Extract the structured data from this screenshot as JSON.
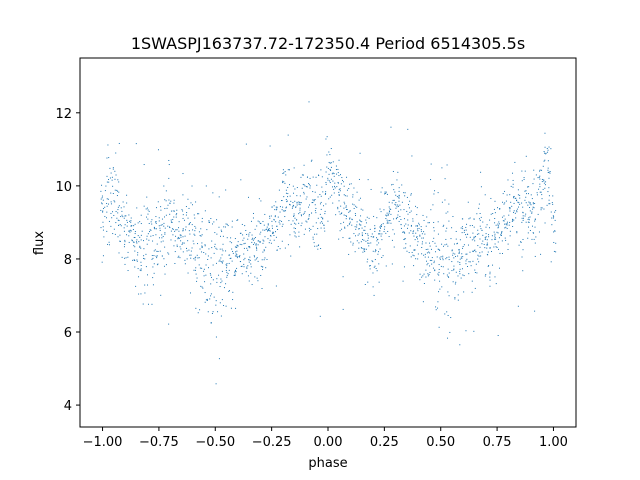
{
  "chart_data": {
    "type": "scatter",
    "title": "1SWASPJ163737.72-172350.4 Period 6514305.5s",
    "xlabel": "phase",
    "ylabel": "flux",
    "xlim": [
      -1.1,
      1.1
    ],
    "ylim": [
      3.4,
      13.5
    ],
    "xticks": [
      -1.0,
      -0.75,
      -0.5,
      -0.25,
      0.0,
      0.25,
      0.5,
      0.75,
      1.0
    ],
    "xtick_labels": [
      "−1.00",
      "−0.75",
      "−0.50",
      "−0.25",
      "0.00",
      "0.25",
      "0.50",
      "0.75",
      "1.00"
    ],
    "yticks": [
      4,
      6,
      8,
      10,
      12
    ],
    "ytick_labels": [
      "4",
      "6",
      "8",
      "10",
      "12"
    ],
    "grid": false,
    "legend": "none",
    "point_color": "#1f77b4",
    "series": [
      {
        "x": [
          -1.0,
          -0.98,
          -0.96,
          -0.94,
          -0.92,
          -0.9,
          -0.88,
          -0.86,
          -0.84,
          -0.82,
          -0.8,
          -0.78,
          -0.76,
          -0.74,
          -0.72,
          -0.7,
          -0.68,
          -0.66,
          -0.64,
          -0.62,
          -0.6,
          -0.58,
          -0.56,
          -0.54,
          -0.52,
          -0.5,
          -0.48,
          -0.46,
          -0.44,
          -0.42,
          -0.4,
          -0.38,
          -0.36,
          -0.34,
          -0.32,
          -0.3,
          -0.28,
          -0.26,
          -0.24,
          -0.22,
          -0.2,
          -0.18,
          -0.16,
          -0.14,
          -0.12,
          -0.1,
          -0.08,
          -0.06,
          -0.04,
          -0.02,
          0.0,
          0.02,
          0.04,
          0.06,
          0.08,
          0.1,
          0.12,
          0.14,
          0.16,
          0.18,
          0.2,
          0.22,
          0.24,
          0.26,
          0.28,
          0.3,
          0.32,
          0.34,
          0.36,
          0.38,
          0.4,
          0.42,
          0.44,
          0.46,
          0.48,
          0.5,
          0.52,
          0.54,
          0.56,
          0.58,
          0.6,
          0.62,
          0.64,
          0.66,
          0.68,
          0.7,
          0.72,
          0.74,
          0.76,
          0.78,
          0.8,
          0.82,
          0.84,
          0.86,
          0.88,
          0.9,
          0.92,
          0.94,
          0.96,
          0.98,
          1.0
        ],
        "y": [
          9.4,
          9.7,
          9.6,
          9.4,
          9.1,
          8.8,
          8.6,
          8.4,
          8.5,
          8.3,
          8.4,
          8.5,
          8.4,
          8.7,
          8.9,
          9.0,
          8.8,
          8.6,
          8.7,
          8.5,
          8.3,
          8.2,
          8.1,
          8.0,
          7.9,
          7.8,
          7.9,
          8.1,
          7.7,
          7.9,
          8.2,
          8.3,
          8.4,
          8.2,
          8.4,
          8.5,
          8.3,
          8.6,
          8.8,
          9.0,
          9.4,
          9.6,
          9.3,
          9.0,
          9.3,
          9.8,
          9.6,
          9.4,
          9.2,
          9.4,
          10.3,
          10.0,
          9.8,
          9.6,
          9.4,
          9.2,
          9.0,
          8.8,
          8.6,
          8.5,
          8.4,
          8.6,
          8.8,
          9.0,
          9.2,
          9.4,
          9.3,
          9.0,
          8.8,
          8.6,
          8.5,
          8.3,
          8.1,
          8.0,
          7.8,
          7.9,
          8.1,
          7.9,
          7.7,
          8.0,
          8.2,
          8.3,
          8.4,
          8.5,
          8.6,
          8.5,
          8.4,
          8.6,
          8.8,
          9.0,
          9.3,
          9.6,
          9.4,
          9.3,
          9.5,
          9.3,
          9.5,
          9.8,
          10.4,
          10.3,
          9.1
        ],
        "spread": [
          0.5,
          0.7,
          0.6,
          0.6,
          0.5,
          0.5,
          0.4,
          0.5,
          0.6,
          0.6,
          0.7,
          0.5,
          0.5,
          0.5,
          0.5,
          0.5,
          0.5,
          0.5,
          0.5,
          0.6,
          0.8,
          0.7,
          0.7,
          0.8,
          0.8,
          0.8,
          0.8,
          0.7,
          0.6,
          0.6,
          0.5,
          0.5,
          0.5,
          0.5,
          0.5,
          0.5,
          0.5,
          0.5,
          0.5,
          0.5,
          0.6,
          0.6,
          0.5,
          0.5,
          0.6,
          0.6,
          0.5,
          0.5,
          0.5,
          0.6,
          0.6,
          0.6,
          0.6,
          0.5,
          0.5,
          0.5,
          0.5,
          0.5,
          0.5,
          0.5,
          0.6,
          0.5,
          0.5,
          0.5,
          0.5,
          0.5,
          0.5,
          0.5,
          0.5,
          0.5,
          0.5,
          0.6,
          0.7,
          0.8,
          0.8,
          0.8,
          0.8,
          0.8,
          0.7,
          0.6,
          0.6,
          0.5,
          0.5,
          0.5,
          0.5,
          0.5,
          0.5,
          0.5,
          0.5,
          0.5,
          0.6,
          0.6,
          0.6,
          0.6,
          0.6,
          0.5,
          0.6,
          0.6,
          0.6,
          0.6,
          0.6
        ]
      }
    ]
  }
}
